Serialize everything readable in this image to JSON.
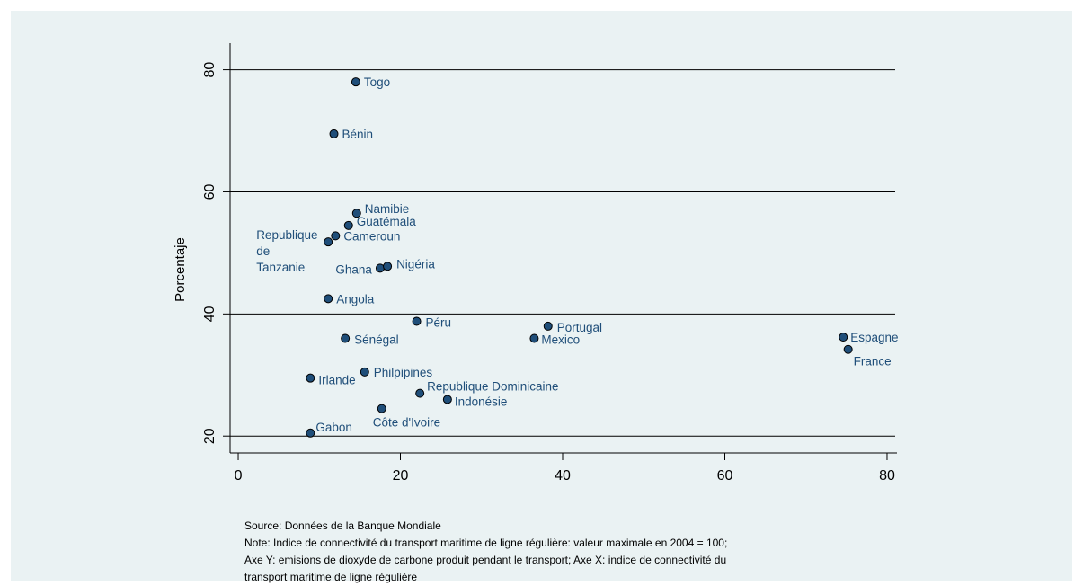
{
  "chart_data": {
    "type": "scatter",
    "title": "",
    "xlabel": "",
    "ylabel": "Porcentaje",
    "xlim": [
      -1,
      81
    ],
    "ylim": [
      19,
      82
    ],
    "xticks": [
      0,
      20,
      40,
      60,
      80
    ],
    "yticks": [
      20,
      40,
      60,
      80
    ],
    "x_tick_labels": [
      "0",
      "20",
      "40",
      "60",
      "80"
    ],
    "y_tick_labels": [
      "20",
      "40",
      "60",
      "80"
    ],
    "grid": "horizontal",
    "marker_color": "#1f4e79",
    "label_color": "#1f4e79",
    "points": [
      {
        "label": "Togo",
        "x": 14.5,
        "y": 78
      },
      {
        "label": "Bénin",
        "x": 11.8,
        "y": 69.5
      },
      {
        "label": "Namibie",
        "x": 14.6,
        "y": 56.5
      },
      {
        "label": "Guatémala",
        "x": 13.6,
        "y": 54.5
      },
      {
        "label": "Cameroun",
        "x": 12.0,
        "y": 52.8
      },
      {
        "label": "Republique\nde\nTanzanie",
        "x": 11.1,
        "y": 51.8
      },
      {
        "label": "Ghana",
        "x": 17.5,
        "y": 47.5
      },
      {
        "label": "Nigéria",
        "x": 18.4,
        "y": 47.8
      },
      {
        "label": "Angola",
        "x": 11.1,
        "y": 42.5
      },
      {
        "label": "Péru",
        "x": 22.0,
        "y": 38.8
      },
      {
        "label": "Portugal",
        "x": 38.2,
        "y": 38.0
      },
      {
        "label": "Mexico",
        "x": 36.5,
        "y": 36.0
      },
      {
        "label": "Espagne",
        "x": 74.6,
        "y": 36.2
      },
      {
        "label": "France",
        "x": 75.2,
        "y": 34.2
      },
      {
        "label": "Sénégal",
        "x": 13.2,
        "y": 36.0
      },
      {
        "label": "Philpipines",
        "x": 15.6,
        "y": 30.5
      },
      {
        "label": "Irlande",
        "x": 8.9,
        "y": 29.5
      },
      {
        "label": "Republique Dominicaine",
        "x": 22.4,
        "y": 27.0
      },
      {
        "label": "Indonésie",
        "x": 25.8,
        "y": 26.0
      },
      {
        "label": "Côte d'Ivoire",
        "x": 17.7,
        "y": 24.5
      },
      {
        "label": "Gabon",
        "x": 8.9,
        "y": 20.5
      }
    ]
  },
  "notes": {
    "source": "Source: Données de la Banque Mondiale",
    "note_line1": "Note: Indice de connectivité du transport maritime de ligne régulière: valeur maximale en 2004 = 100;",
    "note_line2": "Axe Y: emisions de dioxyde de carbone produit pendant le transport; Axe X: indice de connectivité du",
    "note_line3": "transport maritime de ligne régulière"
  }
}
